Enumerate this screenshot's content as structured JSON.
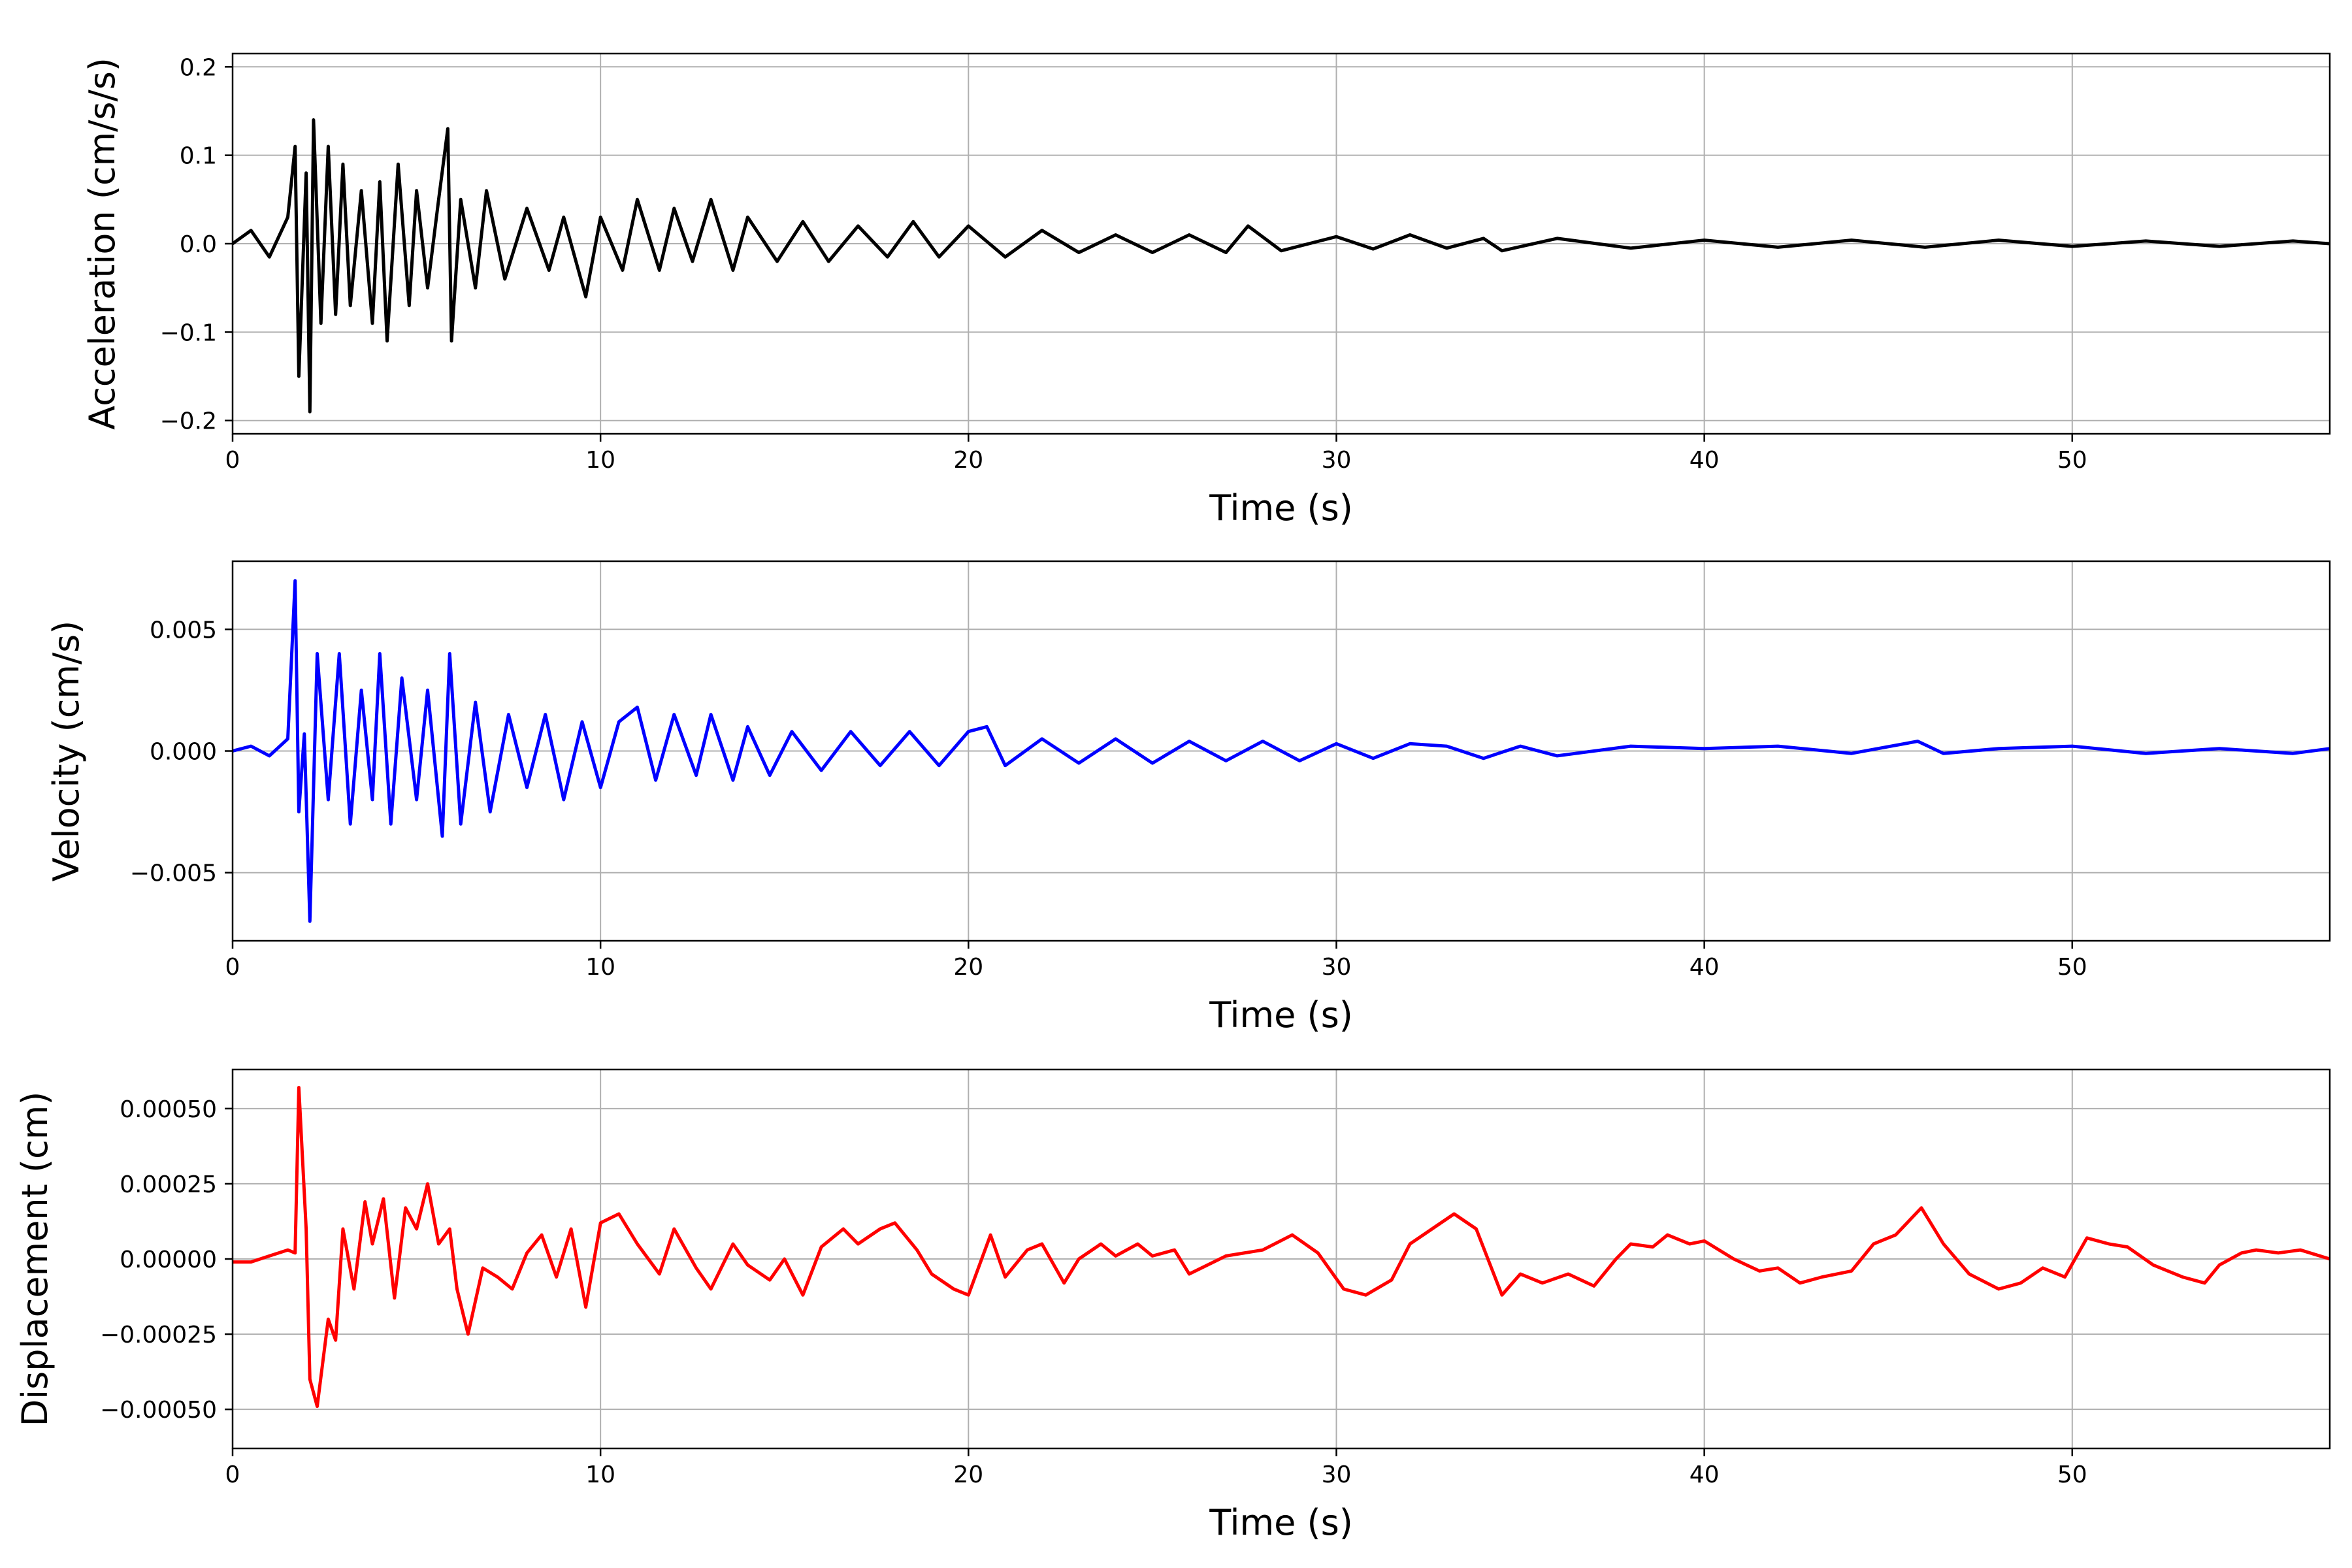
{
  "figure": {
    "background": "#ffffff",
    "grid_color": "#b0b0b0",
    "axis_color": "#000000"
  },
  "chart_data": [
    {
      "type": "line",
      "xlabel": "Time (s)",
      "ylabel": "Acceleration (cm/s/s)",
      "xlim": [
        0,
        57
      ],
      "ylim": [
        -0.215,
        0.215
      ],
      "xticks": [
        0,
        10,
        20,
        30,
        40,
        50
      ],
      "xtick_labels": [
        "0",
        "10",
        "20",
        "30",
        "40",
        "50"
      ],
      "yticks": [
        -0.2,
        -0.1,
        0.0,
        0.1,
        0.2
      ],
      "ytick_labels": [
        "−0.2",
        "−0.1",
        "0.0",
        "0.1",
        "0.2"
      ],
      "grid": true,
      "series": [
        {
          "color": "#000000",
          "x": [
            0,
            0.5,
            1.0,
            1.5,
            1.7,
            1.8,
            2.0,
            2.1,
            2.2,
            2.4,
            2.6,
            2.8,
            3.0,
            3.2,
            3.5,
            3.8,
            4.0,
            4.2,
            4.5,
            4.8,
            5.0,
            5.3,
            5.6,
            5.85,
            5.95,
            6.2,
            6.6,
            6.9,
            7.4,
            8.0,
            8.6,
            9.0,
            9.6,
            10.0,
            10.6,
            11.0,
            11.6,
            12.0,
            12.5,
            13.0,
            13.6,
            14.0,
            14.8,
            15.5,
            16.2,
            17.0,
            17.8,
            18.5,
            19.2,
            20.0,
            21.0,
            22.0,
            23.0,
            24.0,
            25.0,
            26.0,
            27.0,
            27.6,
            28.5,
            30.0,
            31.0,
            32.0,
            33.0,
            34.0,
            34.5,
            36.0,
            38.0,
            40.0,
            42.0,
            44.0,
            46.0,
            48.0,
            50.0,
            52.0,
            54.0,
            56.0,
            57.0
          ],
          "y": [
            0.0,
            0.015,
            -0.015,
            0.03,
            0.11,
            -0.15,
            0.08,
            -0.19,
            0.14,
            -0.09,
            0.11,
            -0.08,
            0.09,
            -0.07,
            0.06,
            -0.09,
            0.07,
            -0.11,
            0.09,
            -0.07,
            0.06,
            -0.05,
            0.05,
            0.13,
            -0.11,
            0.05,
            -0.05,
            0.06,
            -0.04,
            0.04,
            -0.03,
            0.03,
            -0.06,
            0.03,
            -0.03,
            0.05,
            -0.03,
            0.04,
            -0.02,
            0.05,
            -0.03,
            0.03,
            -0.02,
            0.025,
            -0.02,
            0.02,
            -0.015,
            0.025,
            -0.015,
            0.02,
            -0.015,
            0.015,
            -0.01,
            0.01,
            -0.01,
            0.01,
            -0.01,
            0.02,
            -0.008,
            0.008,
            -0.006,
            0.01,
            -0.005,
            0.006,
            -0.008,
            0.006,
            -0.005,
            0.004,
            -0.004,
            0.004,
            -0.004,
            0.004,
            -0.003,
            0.003,
            -0.003,
            0.003,
            0.0
          ]
        }
      ]
    },
    {
      "type": "line",
      "xlabel": "Time (s)",
      "ylabel": "Velocity (cm/s)",
      "xlim": [
        0,
        57
      ],
      "ylim": [
        -0.0078,
        0.0078
      ],
      "xticks": [
        0,
        10,
        20,
        30,
        40,
        50
      ],
      "xtick_labels": [
        "0",
        "10",
        "20",
        "30",
        "40",
        "50"
      ],
      "yticks": [
        -0.005,
        0.0,
        0.005
      ],
      "ytick_labels": [
        "−0.005",
        "0.000",
        "0.005"
      ],
      "grid": true,
      "series": [
        {
          "color": "#0000ff",
          "x": [
            0,
            0.5,
            1.0,
            1.5,
            1.7,
            1.8,
            1.95,
            2.1,
            2.3,
            2.6,
            2.9,
            3.2,
            3.5,
            3.8,
            4.0,
            4.3,
            4.6,
            5.0,
            5.3,
            5.7,
            5.9,
            6.2,
            6.6,
            7.0,
            7.5,
            8.0,
            8.5,
            9.0,
            9.5,
            10.0,
            10.5,
            11.0,
            11.5,
            12.0,
            12.6,
            13.0,
            13.6,
            14.0,
            14.6,
            15.2,
            16.0,
            16.8,
            17.6,
            18.4,
            19.2,
            20.0,
            20.5,
            21.0,
            22.0,
            23.0,
            24.0,
            25.0,
            26.0,
            27.0,
            28.0,
            29.0,
            30.0,
            31.0,
            32.0,
            33.0,
            34.0,
            35.0,
            36.0,
            38.0,
            40.0,
            42.0,
            44.0,
            45.8,
            46.5,
            48.0,
            50.0,
            52.0,
            54.0,
            56.0,
            57.0
          ],
          "y": [
            0.0,
            0.0002,
            -0.0002,
            0.0005,
            0.007,
            -0.0025,
            0.0007,
            -0.007,
            0.004,
            -0.002,
            0.004,
            -0.003,
            0.0025,
            -0.002,
            0.004,
            -0.003,
            0.003,
            -0.002,
            0.0025,
            -0.0035,
            0.004,
            -0.003,
            0.002,
            -0.0025,
            0.0015,
            -0.0015,
            0.0015,
            -0.002,
            0.0012,
            -0.0015,
            0.0012,
            0.0018,
            -0.0012,
            0.0015,
            -0.001,
            0.0015,
            -0.0012,
            0.001,
            -0.001,
            0.0008,
            -0.0008,
            0.0008,
            -0.0006,
            0.0008,
            -0.0006,
            0.0008,
            0.001,
            -0.0006,
            0.0005,
            -0.0005,
            0.0005,
            -0.0005,
            0.0004,
            -0.0004,
            0.0004,
            -0.0004,
            0.0003,
            -0.0003,
            0.0003,
            0.0002,
            -0.0003,
            0.0002,
            -0.0002,
            0.0002,
            0.0001,
            0.0002,
            -0.0001,
            0.0004,
            -0.0001,
            0.0001,
            0.0002,
            -0.0001,
            0.0001,
            -0.0001,
            0.0001
          ]
        }
      ]
    },
    {
      "type": "line",
      "xlabel": "Time (s)",
      "ylabel": "Displacement (cm)",
      "xlim": [
        0,
        57
      ],
      "ylim": [
        -0.00063,
        0.00063
      ],
      "xticks": [
        0,
        10,
        20,
        30,
        40,
        50
      ],
      "xtick_labels": [
        "0",
        "10",
        "20",
        "30",
        "40",
        "50"
      ],
      "yticks": [
        -0.0005,
        -0.00025,
        0.0,
        0.00025,
        0.0005
      ],
      "ytick_labels": [
        "−0.00050",
        "−0.00025",
        "0.00000",
        "0.00025",
        "0.00050"
      ],
      "grid": true,
      "series": [
        {
          "color": "#ff0000",
          "x": [
            0,
            0.5,
            1.0,
            1.5,
            1.7,
            1.8,
            2.0,
            2.1,
            2.3,
            2.6,
            2.8,
            3.0,
            3.3,
            3.6,
            3.8,
            4.1,
            4.4,
            4.7,
            5.0,
            5.3,
            5.6,
            5.9,
            6.1,
            6.4,
            6.8,
            7.2,
            7.6,
            8.0,
            8.4,
            8.8,
            9.2,
            9.6,
            10.0,
            10.5,
            11.0,
            11.6,
            12.0,
            12.6,
            13.0,
            13.6,
            14.0,
            14.6,
            15.0,
            15.5,
            16.0,
            16.6,
            17.0,
            17.6,
            18.0,
            18.6,
            19.0,
            19.6,
            20.0,
            20.6,
            21.0,
            21.6,
            22.0,
            22.6,
            23.0,
            23.6,
            24.0,
            24.6,
            25.0,
            25.6,
            26.0,
            27.0,
            28.0,
            28.8,
            29.5,
            30.2,
            30.8,
            31.5,
            32.0,
            32.6,
            33.2,
            33.8,
            34.5,
            35.0,
            35.6,
            36.3,
            37.0,
            37.6,
            38.0,
            38.6,
            39.0,
            39.6,
            40.0,
            40.8,
            41.5,
            42.0,
            42.6,
            43.2,
            44.0,
            44.6,
            45.2,
            45.9,
            46.5,
            47.2,
            48.0,
            48.6,
            49.2,
            49.8,
            50.4,
            51.0,
            51.5,
            52.2,
            53.0,
            53.6,
            54.0,
            54.6,
            55.0,
            55.6,
            56.2,
            57.0
          ],
          "y": [
            -1e-05,
            -1e-05,
            1e-05,
            3e-05,
            2e-05,
            0.00057,
            0.0001,
            -0.0004,
            -0.00049,
            -0.0002,
            -0.00027,
            0.0001,
            -0.0001,
            0.00019,
            5e-05,
            0.0002,
            -0.00013,
            0.00017,
            0.0001,
            0.00025,
            5e-05,
            0.0001,
            -0.0001,
            -0.00025,
            -3e-05,
            -6e-05,
            -0.0001,
            2e-05,
            8e-05,
            -6e-05,
            0.0001,
            -0.00016,
            0.00012,
            0.00015,
            5e-05,
            -5e-05,
            0.0001,
            -3e-05,
            -0.0001,
            5e-05,
            -2e-05,
            -7e-05,
            0.0,
            -0.00012,
            4e-05,
            0.0001,
            5e-05,
            0.0001,
            0.00012,
            3e-05,
            -5e-05,
            -0.0001,
            -0.00012,
            8e-05,
            -6e-05,
            3e-05,
            5e-05,
            -8e-05,
            0.0,
            5e-05,
            1e-05,
            5e-05,
            1e-05,
            3e-05,
            -5e-05,
            1e-05,
            3e-05,
            8e-05,
            2e-05,
            -0.0001,
            -0.00012,
            -7e-05,
            5e-05,
            0.0001,
            0.00015,
            0.0001,
            -0.00012,
            -5e-05,
            -8e-05,
            -5e-05,
            -9e-05,
            0.0,
            5e-05,
            4e-05,
            8e-05,
            5e-05,
            6e-05,
            0.0,
            -4e-05,
            -3e-05,
            -8e-05,
            -6e-05,
            -4e-05,
            5e-05,
            8e-05,
            0.00017,
            5e-05,
            -5e-05,
            -0.0001,
            -8e-05,
            -3e-05,
            -6e-05,
            7e-05,
            5e-05,
            4e-05,
            -2e-05,
            -6e-05,
            -8e-05,
            -2e-05,
            2e-05,
            3e-05,
            2e-05,
            3e-05,
            0.0
          ]
        }
      ]
    }
  ]
}
